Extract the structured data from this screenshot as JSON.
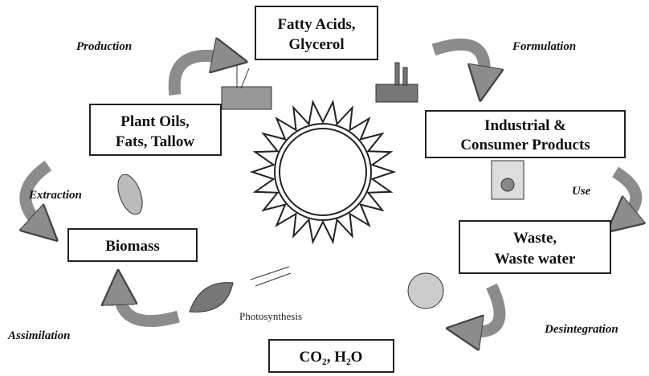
{
  "nodes": [
    {
      "lines": [
        "Fatty Acids,",
        "Glycerol"
      ]
    },
    {
      "lines": [
        "Industrial &",
        "Consumer Products"
      ]
    },
    {
      "lines": [
        "Waste,",
        "Waste water"
      ]
    },
    {
      "lines": [
        "CO₂, H₂O"
      ]
    },
    {
      "lines": [
        "Biomass"
      ]
    },
    {
      "lines": [
        "Plant Oils,",
        "Fats, Tallow"
      ]
    }
  ],
  "edges": [
    {
      "label": "Production"
    },
    {
      "label": "Formulation"
    },
    {
      "label": "Use"
    },
    {
      "label": "Desintegration"
    },
    {
      "label": "Assimilation"
    },
    {
      "label": "Extraction"
    }
  ],
  "center": {
    "label": "Photosynthesis"
  }
}
